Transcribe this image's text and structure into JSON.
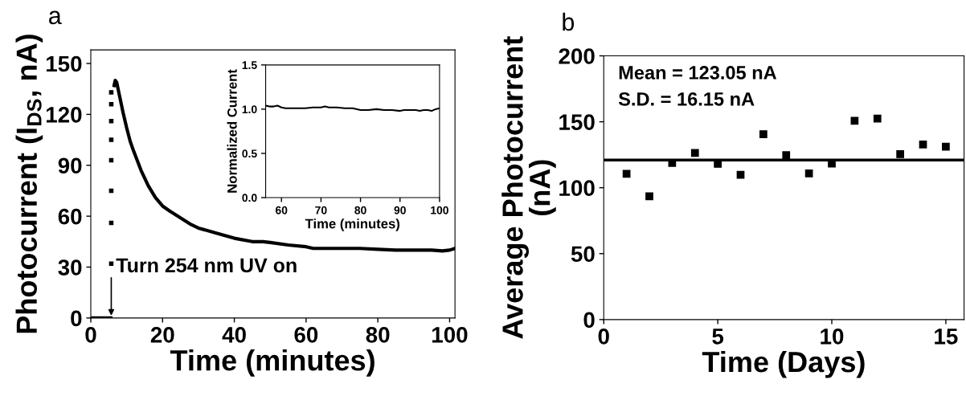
{
  "chart_data": [
    {
      "type": "line",
      "title": "a",
      "xlabel": "Time (minutes)",
      "ylabel": "Photocurrent (I$_{DS}$, nA)",
      "xlim": [
        0,
        101.5
      ],
      "ylim": [
        0,
        158
      ],
      "xticks": [
        0,
        20,
        40,
        60,
        80,
        100
      ],
      "yticks": [
        0,
        30,
        60,
        90,
        120,
        150
      ],
      "grid": false,
      "legend": false,
      "annotations": [
        {
          "text": "Turn 254 nm UV on",
          "x": 5.7,
          "y": 0
        }
      ],
      "series": [
        {
          "type": "scatter",
          "marker": "square",
          "color": "#000000",
          "x": [
            5.7,
            5.7,
            5.7,
            5.7,
            5.7,
            5.7,
            5.7,
            5.7
          ],
          "values": [
            32,
            56,
            75,
            93,
            105,
            116,
            126,
            133
          ]
        },
        {
          "type": "line",
          "color": "#000000",
          "x": [
            0,
            5.6,
            5.7,
            6.5,
            6.8,
            7.2,
            8,
            9,
            10,
            11,
            12,
            14,
            16,
            18,
            20,
            22,
            25,
            28,
            30,
            35,
            40,
            45,
            48,
            50,
            55,
            60,
            62,
            65,
            70,
            75,
            80,
            85,
            90,
            95,
            98,
            100,
            101.5
          ],
          "values": [
            0,
            0,
            null,
            137,
            140,
            139,
            131,
            121,
            112,
            104,
            98,
            87,
            78,
            71,
            66,
            63,
            59,
            55,
            53,
            50,
            47,
            45,
            45,
            44.5,
            43,
            42,
            41,
            41,
            41,
            41,
            40.5,
            40,
            40,
            40,
            39.5,
            40,
            41
          ]
        }
      ]
    },
    {
      "type": "line",
      "xlabel": "Time (minutes)",
      "ylabel": "Normalized Current",
      "xlim": [
        56,
        100
      ],
      "ylim": [
        0,
        1.5
      ],
      "xticks": [
        60,
        70,
        80,
        90,
        100
      ],
      "yticks": [
        {
          "value": 0,
          "label": "0.0"
        },
        0.5,
        {
          "value": 1,
          "label": "1.0"
        },
        1.5
      ],
      "grid": false,
      "legend": false,
      "series": [
        {
          "type": "line",
          "color": "#000000",
          "x": [
            56,
            57,
            58,
            59,
            60,
            61,
            62,
            64,
            66,
            68,
            70,
            71,
            72,
            74,
            76,
            78,
            80,
            82,
            84,
            86,
            88,
            90,
            91,
            92,
            94,
            95,
            96,
            97,
            98,
            99,
            100
          ],
          "values": [
            1.04,
            1.03,
            1.03,
            1.04,
            1.02,
            1.01,
            1.01,
            1.01,
            1.01,
            1.02,
            1.02,
            1.03,
            1.02,
            1.02,
            1.01,
            1.01,
            0.99,
            0.99,
            1.0,
            0.99,
            0.99,
            0.98,
            0.99,
            0.99,
            0.99,
            0.98,
            0.99,
            0.99,
            0.98,
            1.0,
            1.01
          ]
        }
      ]
    },
    {
      "type": "scatter",
      "title": "b",
      "xlabel": "Time (Days)",
      "ylabel": "Average Photocurrent\n(nA)",
      "xlim": [
        0,
        15.8
      ],
      "ylim": [
        0,
        200
      ],
      "xticks": [
        0,
        5,
        10,
        15
      ],
      "yticks": [
        0,
        50,
        100,
        150,
        200
      ],
      "grid": false,
      "legend": false,
      "marker": "square",
      "annotations": [
        "Mean = 123.05 nA",
        "S.D. = 16.15 nA"
      ],
      "ref_lines": [
        {
          "axis": "y",
          "value": 121,
          "color": "#000000",
          "line_style": "solid"
        }
      ],
      "x": [
        1,
        2,
        3,
        4,
        5,
        6,
        7,
        8,
        9,
        10,
        11,
        12,
        13,
        14,
        15
      ],
      "values": [
        110.5,
        93.5,
        118.8,
        126.4,
        118.1,
        109.8,
        140.6,
        124.7,
        110.8,
        118.3,
        150.8,
        152.4,
        125.4,
        132.8,
        131.1
      ],
      "color": "#000000"
    }
  ]
}
